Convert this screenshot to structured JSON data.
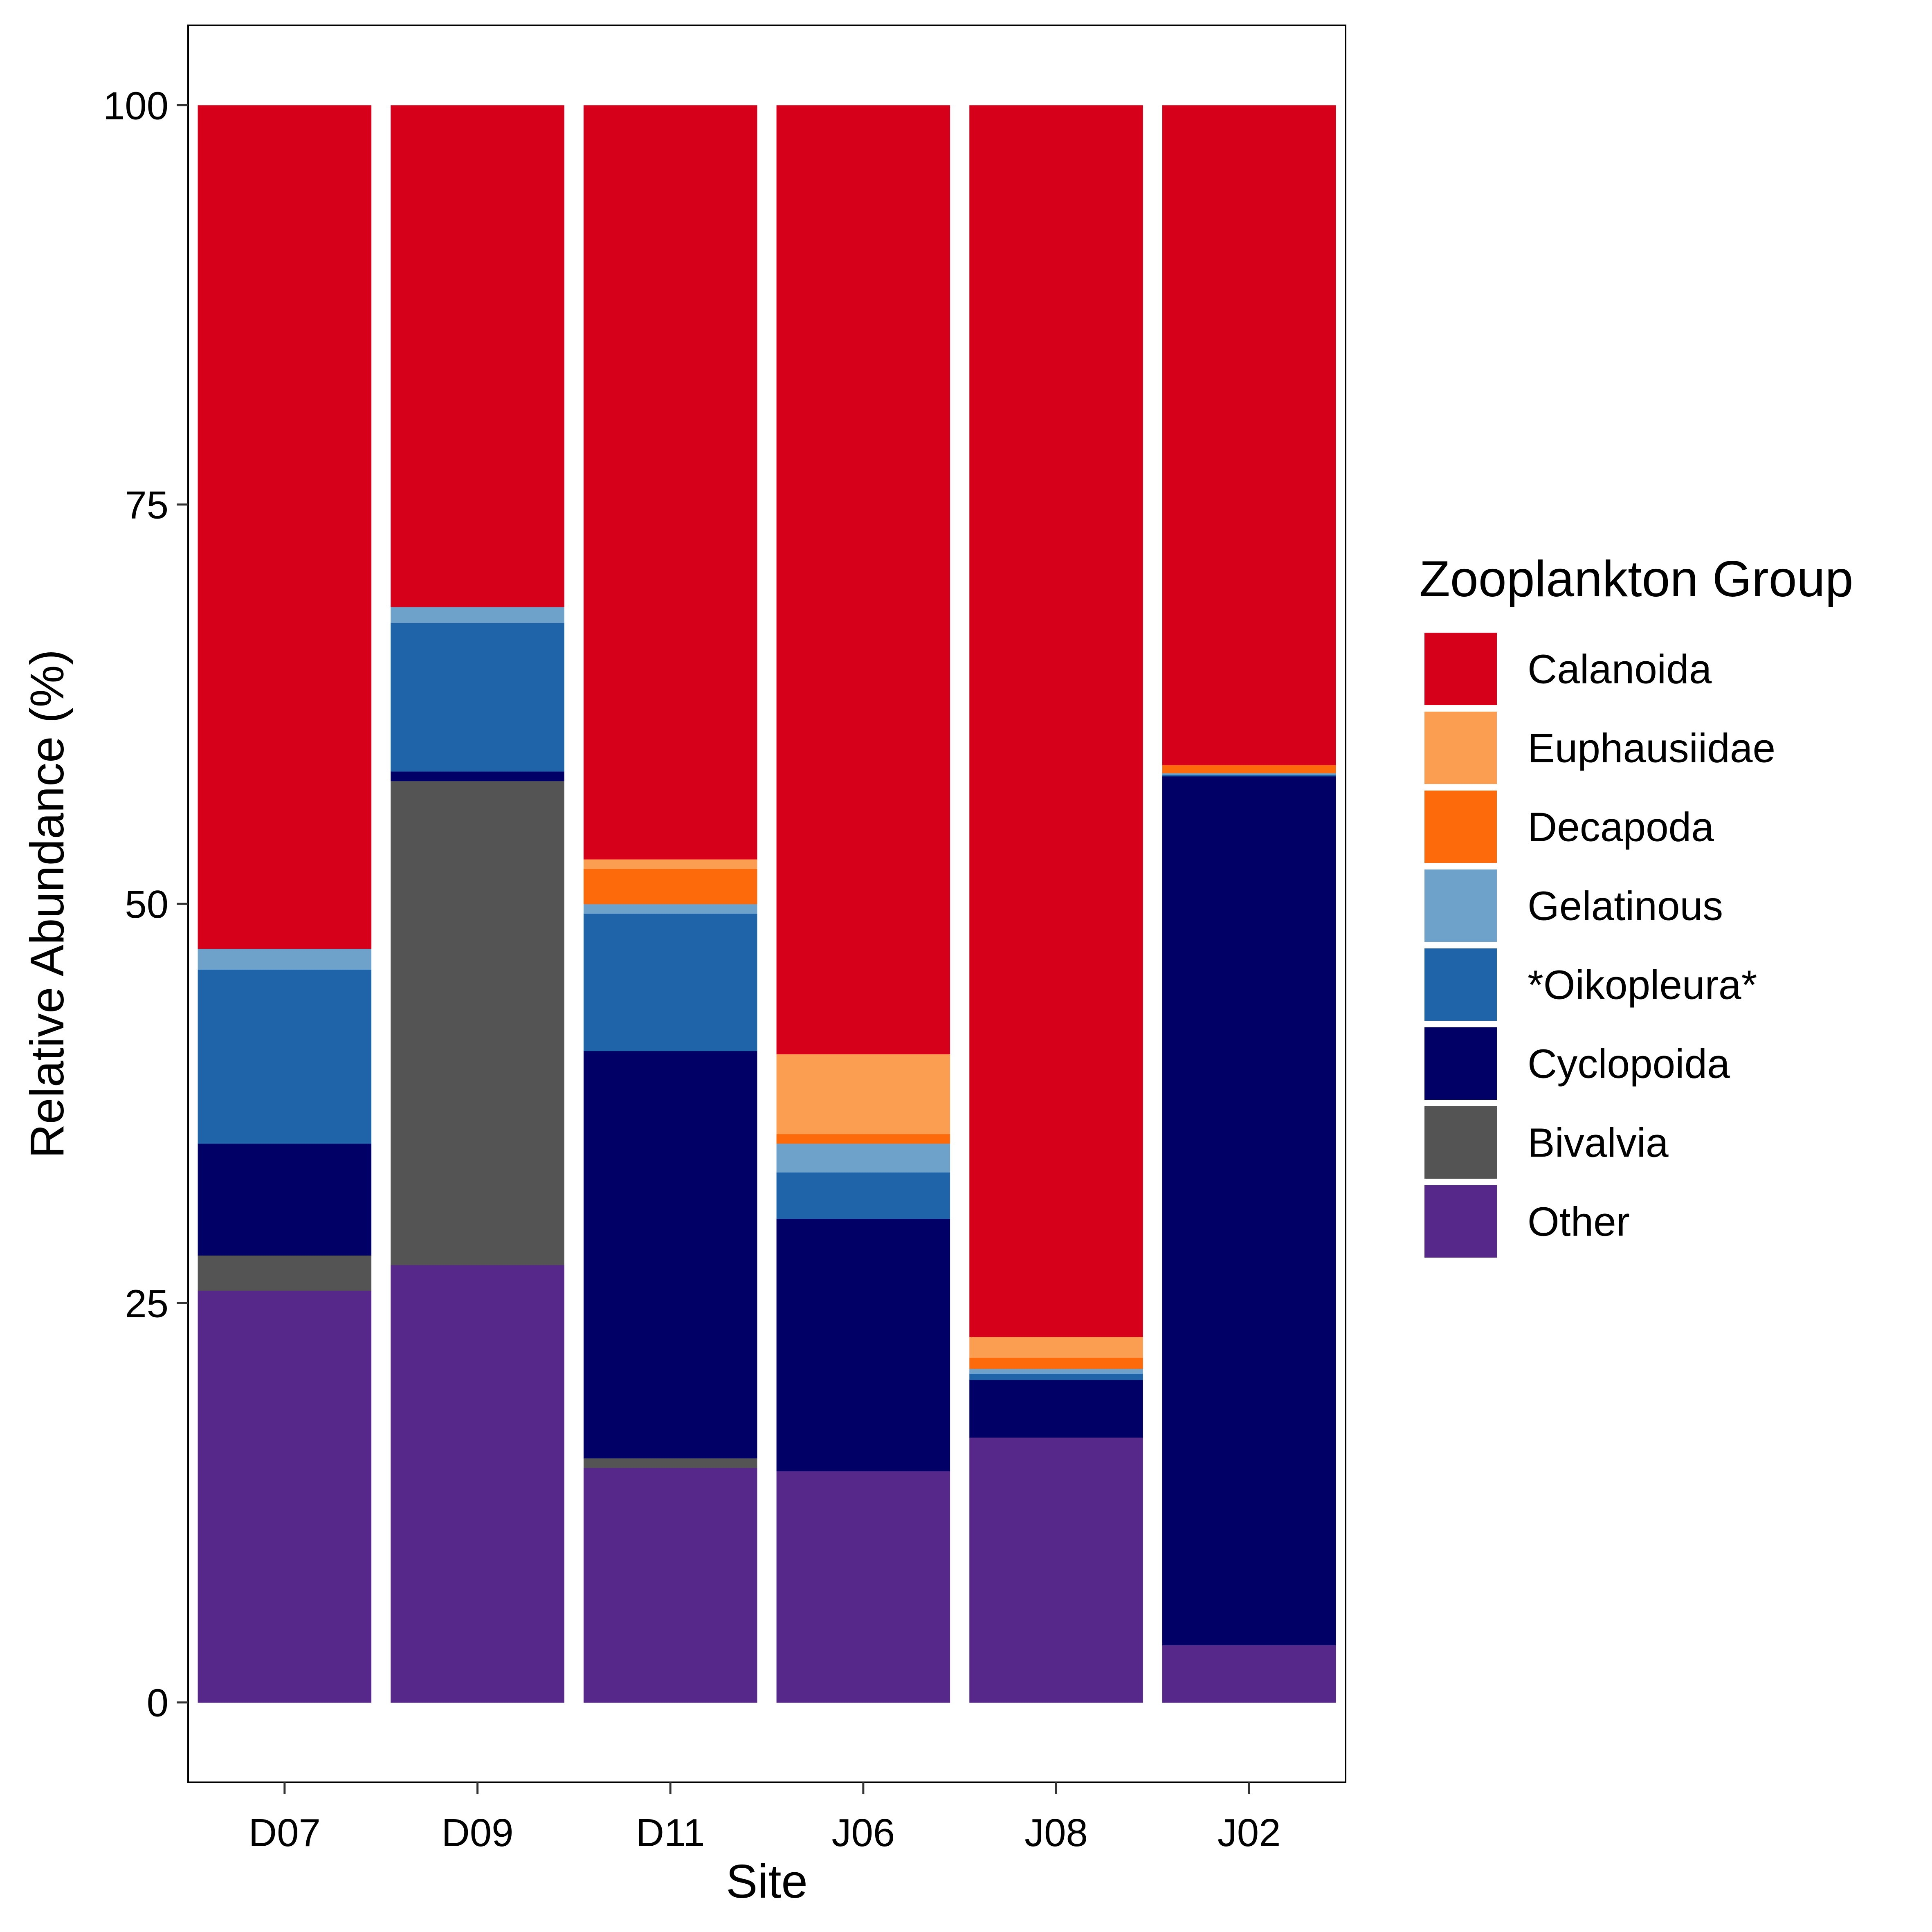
{
  "chart_data": {
    "type": "bar",
    "stacked": true,
    "title": "",
    "xlabel": "Site",
    "ylabel": "Relative Abundance (%)",
    "ylim": [
      -5,
      105
    ],
    "yticks": [
      0,
      25,
      50,
      75,
      100
    ],
    "grid": false,
    "legend_position": "right",
    "categories": [
      "D07",
      "D09",
      "D11",
      "J06",
      "J08",
      "J02"
    ],
    "legend": {
      "title": "Zooplankton Group",
      "order": [
        "Calanoida",
        "Euphausiidae",
        "Decapoda",
        "Gelatinous",
        "*Oikopleura*",
        "Cyclopoida",
        "Bivalvia",
        "Other"
      ]
    },
    "series": [
      {
        "name": "Other",
        "color": "#56288A",
        "values": [
          25.8,
          27.4,
          14.7,
          14.5,
          16.6,
          3.6
        ]
      },
      {
        "name": "Bivalvia",
        "color": "#545454",
        "values": [
          2.2,
          30.3,
          0.6,
          0.0,
          0.0,
          0.0
        ]
      },
      {
        "name": "Cyclopoida",
        "color": "#000066",
        "values": [
          7.0,
          0.6,
          25.5,
          15.8,
          3.6,
          54.4
        ]
      },
      {
        "name": "*Oikopleura*",
        "color": "#1F63A8",
        "values": [
          10.9,
          9.3,
          8.6,
          2.9,
          0.4,
          0.1
        ]
      },
      {
        "name": "Gelatinous",
        "color": "#6FA2CB",
        "values": [
          1.3,
          1.0,
          0.6,
          1.8,
          0.3,
          0.1
        ]
      },
      {
        "name": "Decapoda",
        "color": "#FD6A0B",
        "values": [
          0.0,
          0.0,
          2.2,
          0.6,
          0.7,
          0.5
        ]
      },
      {
        "name": "Euphausiidae",
        "color": "#FC9E52",
        "values": [
          0.0,
          0.0,
          0.6,
          5.0,
          1.3,
          0.0
        ]
      },
      {
        "name": "Calanoida",
        "color": "#D7001A",
        "values": [
          52.8,
          31.4,
          47.2,
          59.4,
          77.1,
          41.3
        ]
      }
    ]
  }
}
